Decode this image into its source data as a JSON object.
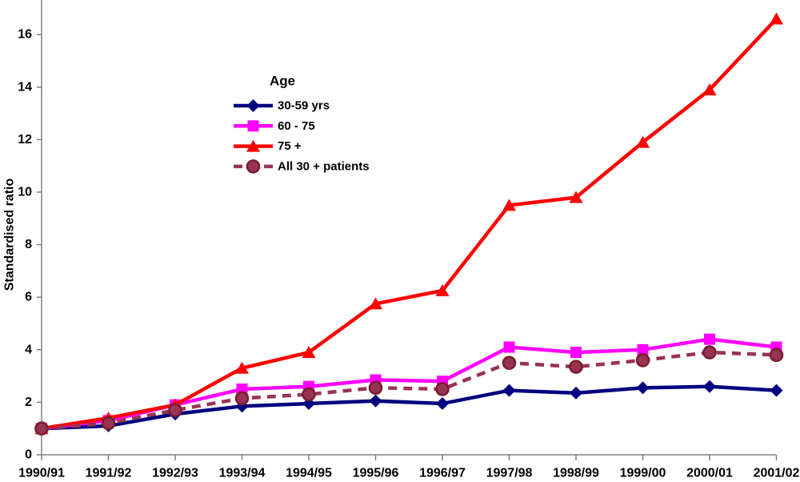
{
  "chart_data": {
    "type": "line",
    "title": "",
    "xlabel": "",
    "ylabel": "Standardised ratio",
    "ylim": [
      0,
      17.3
    ],
    "yticks": [
      0,
      2,
      4,
      6,
      8,
      10,
      12,
      14,
      16
    ],
    "grid": false,
    "axis_color": "#808080",
    "legend": {
      "title": "Age",
      "position": "inside-upper-left"
    },
    "categories": [
      "1990/91",
      "1991/92",
      "1992/93",
      "1993/94",
      "1994/95",
      "1995/96",
      "1996/97",
      "1997/98",
      "1998/99",
      "1999/00",
      "2000/01",
      "2001/02"
    ],
    "series": [
      {
        "name": "30-59 yrs",
        "color": "#000080",
        "marker": "diamond",
        "line_style": "solid",
        "values": [
          1.0,
          1.1,
          1.55,
          1.85,
          1.95,
          2.05,
          1.95,
          2.45,
          2.35,
          2.55,
          2.6,
          2.45
        ]
      },
      {
        "name": "60 - 75",
        "color": "#FF00FF",
        "marker": "square",
        "line_style": "solid",
        "values": [
          1.0,
          1.3,
          1.9,
          2.5,
          2.6,
          2.85,
          2.8,
          4.1,
          3.9,
          4.0,
          4.4,
          4.1
        ]
      },
      {
        "name": "75 +",
        "color": "#FF0000",
        "marker": "triangle",
        "line_style": "solid",
        "values": [
          1.0,
          1.4,
          1.9,
          3.3,
          3.9,
          5.75,
          6.25,
          9.5,
          9.8,
          11.9,
          13.9,
          16.6
        ]
      },
      {
        "name": "All 30 + patients",
        "color": "#993355",
        "marker": "circle",
        "marker_stroke": "#7A1E2E",
        "line_style": "dashed",
        "values": [
          1.0,
          1.2,
          1.7,
          2.15,
          2.3,
          2.55,
          2.5,
          3.5,
          3.35,
          3.6,
          3.9,
          3.8
        ]
      }
    ]
  }
}
